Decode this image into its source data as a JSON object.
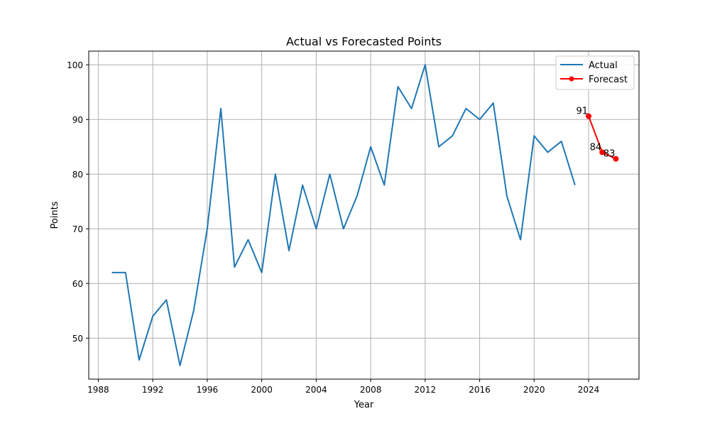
{
  "chart_data": {
    "type": "line",
    "title": "Actual vs Forecasted Points",
    "xlabel": "Year",
    "ylabel": "Points",
    "xlim": [
      1987.3,
      2027.7
    ],
    "ylim": [
      42.5,
      102.5
    ],
    "xticks": [
      1988,
      1992,
      1996,
      2000,
      2004,
      2008,
      2012,
      2016,
      2020,
      2024
    ],
    "yticks": [
      50,
      60,
      70,
      80,
      90,
      100
    ],
    "grid": true,
    "legend_position": "top-right",
    "series": [
      {
        "name": "Actual",
        "color": "#1f77b4",
        "marker": "none",
        "x": [
          1989,
          1990,
          1991,
          1992,
          1993,
          1994,
          1995,
          1996,
          1997,
          1998,
          1999,
          2000,
          2001,
          2002,
          2003,
          2004,
          2005,
          2006,
          2007,
          2008,
          2009,
          2010,
          2011,
          2012,
          2013,
          2014,
          2015,
          2016,
          2017,
          2018,
          2019,
          2020,
          2021,
          2022,
          2023
        ],
        "values": [
          62,
          62,
          46,
          54,
          57,
          45,
          55,
          70,
          92,
          63,
          68,
          62,
          80,
          66,
          78,
          70,
          80,
          70,
          76,
          85,
          78,
          96,
          92,
          100,
          85,
          87,
          92,
          90,
          93,
          76,
          68,
          87,
          84,
          86,
          78
        ]
      },
      {
        "name": "Forecast",
        "color": "#ff0000",
        "marker": "circle",
        "x": [
          2024,
          2025,
          2026
        ],
        "values": [
          90.6,
          84.0,
          82.8
        ],
        "data_labels": [
          "91",
          "84",
          "83"
        ]
      }
    ]
  }
}
